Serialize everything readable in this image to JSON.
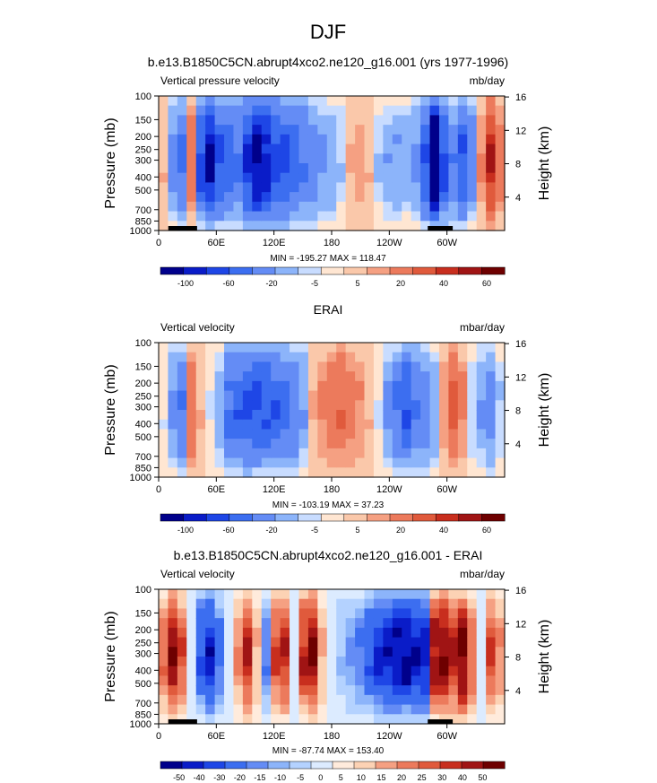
{
  "figure_title": "DJF",
  "colors": {
    "panel_palette": [
      "#00008b",
      "#0a1cc8",
      "#1e46e6",
      "#3c6ef0",
      "#648cf5",
      "#8cb4fa",
      "#c8dcff",
      "#ffe6d2",
      "#fac8aa",
      "#f5a082",
      "#ec7a5c",
      "#e05a3c",
      "#c82e1e",
      "#a01414",
      "#6e0000"
    ],
    "diff_palette": [
      "#00008b",
      "#0a1cc8",
      "#1e46e6",
      "#3c6ef0",
      "#648cf5",
      "#8cb4fa",
      "#b4d2ff",
      "#dcebff",
      "#ffebdc",
      "#fcd2b4",
      "#f5a082",
      "#ec7a5c",
      "#e05a3c",
      "#c82e1e",
      "#a01414",
      "#6e0000"
    ]
  },
  "chart_data": [
    {
      "type": "heatmap",
      "title": "b.e13.B1850C5CN.abrupt4xco2.ne120_g16.001 (yrs 1977-1996)",
      "left_label": "Vertical pressure velocity",
      "right_label": "mb/day",
      "ylabel": "Pressure (mb)",
      "ylabel_right": "Height (km)",
      "x_ticks": [
        "0",
        "60E",
        "120E",
        "180",
        "120W",
        "60W"
      ],
      "x_tick_values": [
        0,
        60,
        120,
        180,
        240,
        300
      ],
      "xlim": [
        0,
        360
      ],
      "y_ticks": [
        "100",
        "150",
        "200",
        "250",
        "300",
        "400",
        "500",
        "700",
        "850",
        "1000"
      ],
      "y_tick_values": [
        100,
        150,
        200,
        250,
        300,
        400,
        500,
        700,
        850,
        1000
      ],
      "ylim": [
        1000,
        100
      ],
      "height_ticks": [
        "4",
        "8",
        "12",
        "16"
      ],
      "height_tick_values": [
        4,
        8,
        12,
        16
      ],
      "stats": "MIN = -195.27  MAX = 118.47",
      "colorbar_labels": [
        "-100",
        "-60",
        "-20",
        "-5",
        "5",
        "20",
        "40",
        "60"
      ],
      "colorbar_levels": [
        -120,
        -100,
        -80,
        -60,
        -40,
        -20,
        -10,
        -5,
        0,
        5,
        10,
        20,
        30,
        40,
        60,
        80
      ],
      "profile": [
        5,
        -30,
        -50,
        15,
        -70,
        -110,
        -60,
        -50,
        -40,
        -80,
        -110,
        -95,
        -70,
        -70,
        -50,
        -40,
        -35,
        -25,
        -20,
        -10,
        5,
        8,
        5,
        -10,
        -18,
        -20,
        -15,
        -25,
        -60,
        -150,
        -70,
        -35,
        -60,
        -30,
        10,
        40,
        15
      ],
      "land": [
        [
          10,
          40
        ],
        [
          280,
          306
        ]
      ],
      "min": -195.27,
      "max": 118.47
    },
    {
      "type": "heatmap",
      "title": "ERAI",
      "left_label": "Vertical velocity",
      "right_label": "mbar/day",
      "ylabel": "Pressure (mb)",
      "ylabel_right": "Height (km)",
      "x_ticks": [
        "0",
        "60E",
        "120E",
        "180",
        "120W",
        "60W"
      ],
      "x_tick_values": [
        0,
        60,
        120,
        180,
        240,
        300
      ],
      "xlim": [
        0,
        360
      ],
      "y_ticks": [
        "100",
        "150",
        "200",
        "250",
        "300",
        "400",
        "500",
        "700",
        "850",
        "1000"
      ],
      "y_tick_values": [
        100,
        150,
        200,
        250,
        300,
        400,
        500,
        700,
        850,
        1000
      ],
      "ylim": [
        1000,
        100
      ],
      "height_ticks": [
        "4",
        "8",
        "12",
        "16"
      ],
      "height_tick_values": [
        4,
        8,
        12,
        16
      ],
      "stats": "MIN = -103.19  MAX =  37.23",
      "colorbar_labels": [
        "-100",
        "-60",
        "-20",
        "-5",
        "5",
        "20",
        "40",
        "60"
      ],
      "colorbar_levels": [
        -120,
        -100,
        -80,
        -60,
        -40,
        -20,
        -10,
        -5,
        0,
        5,
        10,
        20,
        30,
        40,
        60,
        80
      ],
      "profile": [
        -5,
        -25,
        -40,
        20,
        5,
        -5,
        -15,
        -45,
        -55,
        -60,
        -65,
        -60,
        -55,
        -50,
        -40,
        -20,
        5,
        12,
        18,
        20,
        15,
        10,
        5,
        -5,
        -25,
        -45,
        -60,
        -40,
        -35,
        -20,
        8,
        25,
        12,
        -10,
        -20,
        -30,
        -10
      ],
      "land": [],
      "min": -103.19,
      "max": 37.23
    },
    {
      "type": "heatmap",
      "title": "b.e13.B1850C5CN.abrupt4xco2.ne120_g16.001 - ERAI",
      "left_label": "Vertical velocity",
      "right_label": "mbar/day",
      "ylabel": "Pressure (mb)",
      "ylabel_right": "Height (km)",
      "x_ticks": [
        "0",
        "60E",
        "120E",
        "180",
        "120W",
        "60W"
      ],
      "x_tick_values": [
        0,
        60,
        120,
        180,
        240,
        300
      ],
      "xlim": [
        0,
        360
      ],
      "y_ticks": [
        "100",
        "150",
        "200",
        "250",
        "300",
        "400",
        "500",
        "700",
        "850",
        "1000"
      ],
      "y_tick_values": [
        100,
        150,
        200,
        250,
        300,
        400,
        500,
        700,
        850,
        1000
      ],
      "ylim": [
        1000,
        100
      ],
      "height_ticks": [
        "4",
        "8",
        "12",
        "16"
      ],
      "height_tick_values": [
        4,
        8,
        12,
        16
      ],
      "stats": "MIN = -87.74  MAX = 153.40",
      "colorbar_labels": [
        "-50",
        "-40",
        "-30",
        "-20",
        "-15",
        "-10",
        "-5",
        "0",
        "5",
        "10",
        "15",
        "20",
        "25",
        "30",
        "40",
        "50"
      ],
      "colorbar_levels": [
        -60,
        -50,
        -40,
        -30,
        -20,
        -15,
        -10,
        -5,
        0,
        5,
        10,
        15,
        20,
        25,
        30,
        40,
        50
      ],
      "profile": [
        20,
        40,
        25,
        -5,
        -30,
        -45,
        -25,
        -5,
        15,
        30,
        10,
        -20,
        25,
        30,
        -5,
        30,
        40,
        10,
        -5,
        -10,
        -15,
        -20,
        -30,
        -40,
        -45,
        -50,
        -55,
        -50,
        -45,
        35,
        40,
        30,
        45,
        20,
        0,
        25,
        15
      ],
      "land": [
        [
          10,
          40
        ],
        [
          280,
          306
        ]
      ],
      "min": -87.74,
      "max": 153.4
    }
  ]
}
